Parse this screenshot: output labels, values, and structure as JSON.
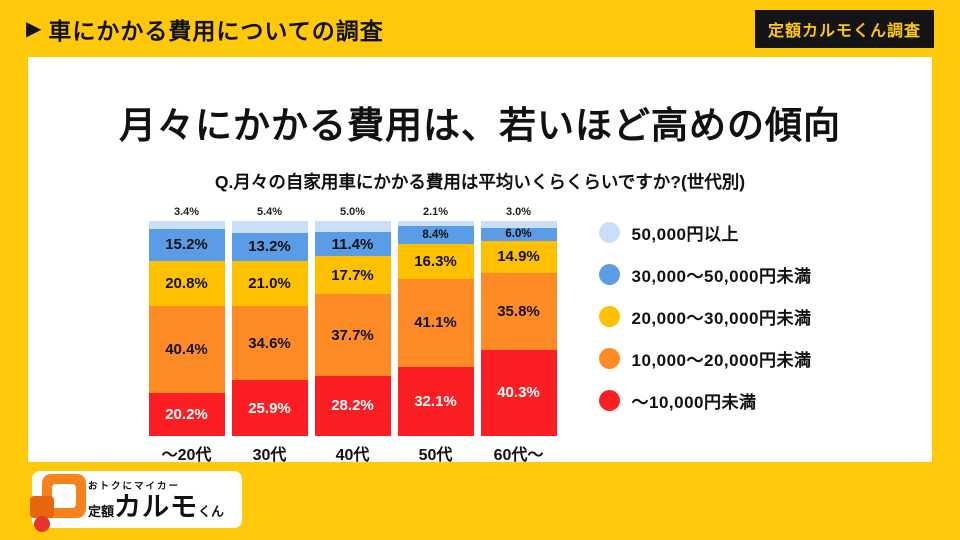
{
  "header": {
    "arrow": "▶",
    "title": "車にかかる費用についての調査",
    "badge": "定額カルモくん調査"
  },
  "main": {
    "headline": "月々にかかる費用は、若いほど高めの傾向",
    "question": "Q.月々の自家用車にかかる費用は平均いくらくらいですか?(世代別)"
  },
  "colors": {
    "background_yellow": "#ffc90a",
    "panel_white": "#ffffff",
    "text_black": "#111111",
    "badge_black": "#141414"
  },
  "chart_data": {
    "type": "bar",
    "subtype": "stacked-percentage",
    "categories": [
      "〜20代",
      "30代",
      "40代",
      "50代",
      "60代〜"
    ],
    "series": [
      {
        "name": "〜10,000円未満",
        "color": "#fb1f24",
        "label_color": "#ffffff",
        "values": [
          20.2,
          25.9,
          28.2,
          32.1,
          40.3
        ]
      },
      {
        "name": "10,000〜20,000円未満",
        "color": "#ff8b27",
        "label_color": "#111111",
        "values": [
          40.4,
          34.6,
          37.7,
          41.1,
          35.8
        ]
      },
      {
        "name": "20,000〜30,000円未満",
        "color": "#ffc000",
        "label_color": "#111111",
        "values": [
          20.8,
          21.0,
          17.7,
          16.3,
          14.9
        ]
      },
      {
        "name": "30,000〜50,000円未満",
        "color": "#5b9ce6",
        "label_color": "#111111",
        "values": [
          15.2,
          13.2,
          11.4,
          8.4,
          6.0
        ]
      },
      {
        "name": "50,000円以上",
        "color": "#c9def7",
        "label_color": "#222222",
        "values": [
          3.4,
          5.4,
          5.0,
          2.1,
          3.0
        ]
      }
    ],
    "value_suffix": "%",
    "ylim": [
      0,
      100
    ],
    "grid": false,
    "legend_position": "right",
    "legend_order_top_to_bottom": [
      "50,000円以上",
      "30,000〜50,000円未満",
      "20,000〜30,000円未満",
      "10,000〜20,000円未満",
      "〜10,000円未満"
    ],
    "note": "top segment labels are printed above each bar"
  },
  "logo": {
    "tagline": "おトクにマイカー",
    "brand_prefix": "定額",
    "brand_main": "カルモ",
    "brand_suffix": "くん"
  }
}
